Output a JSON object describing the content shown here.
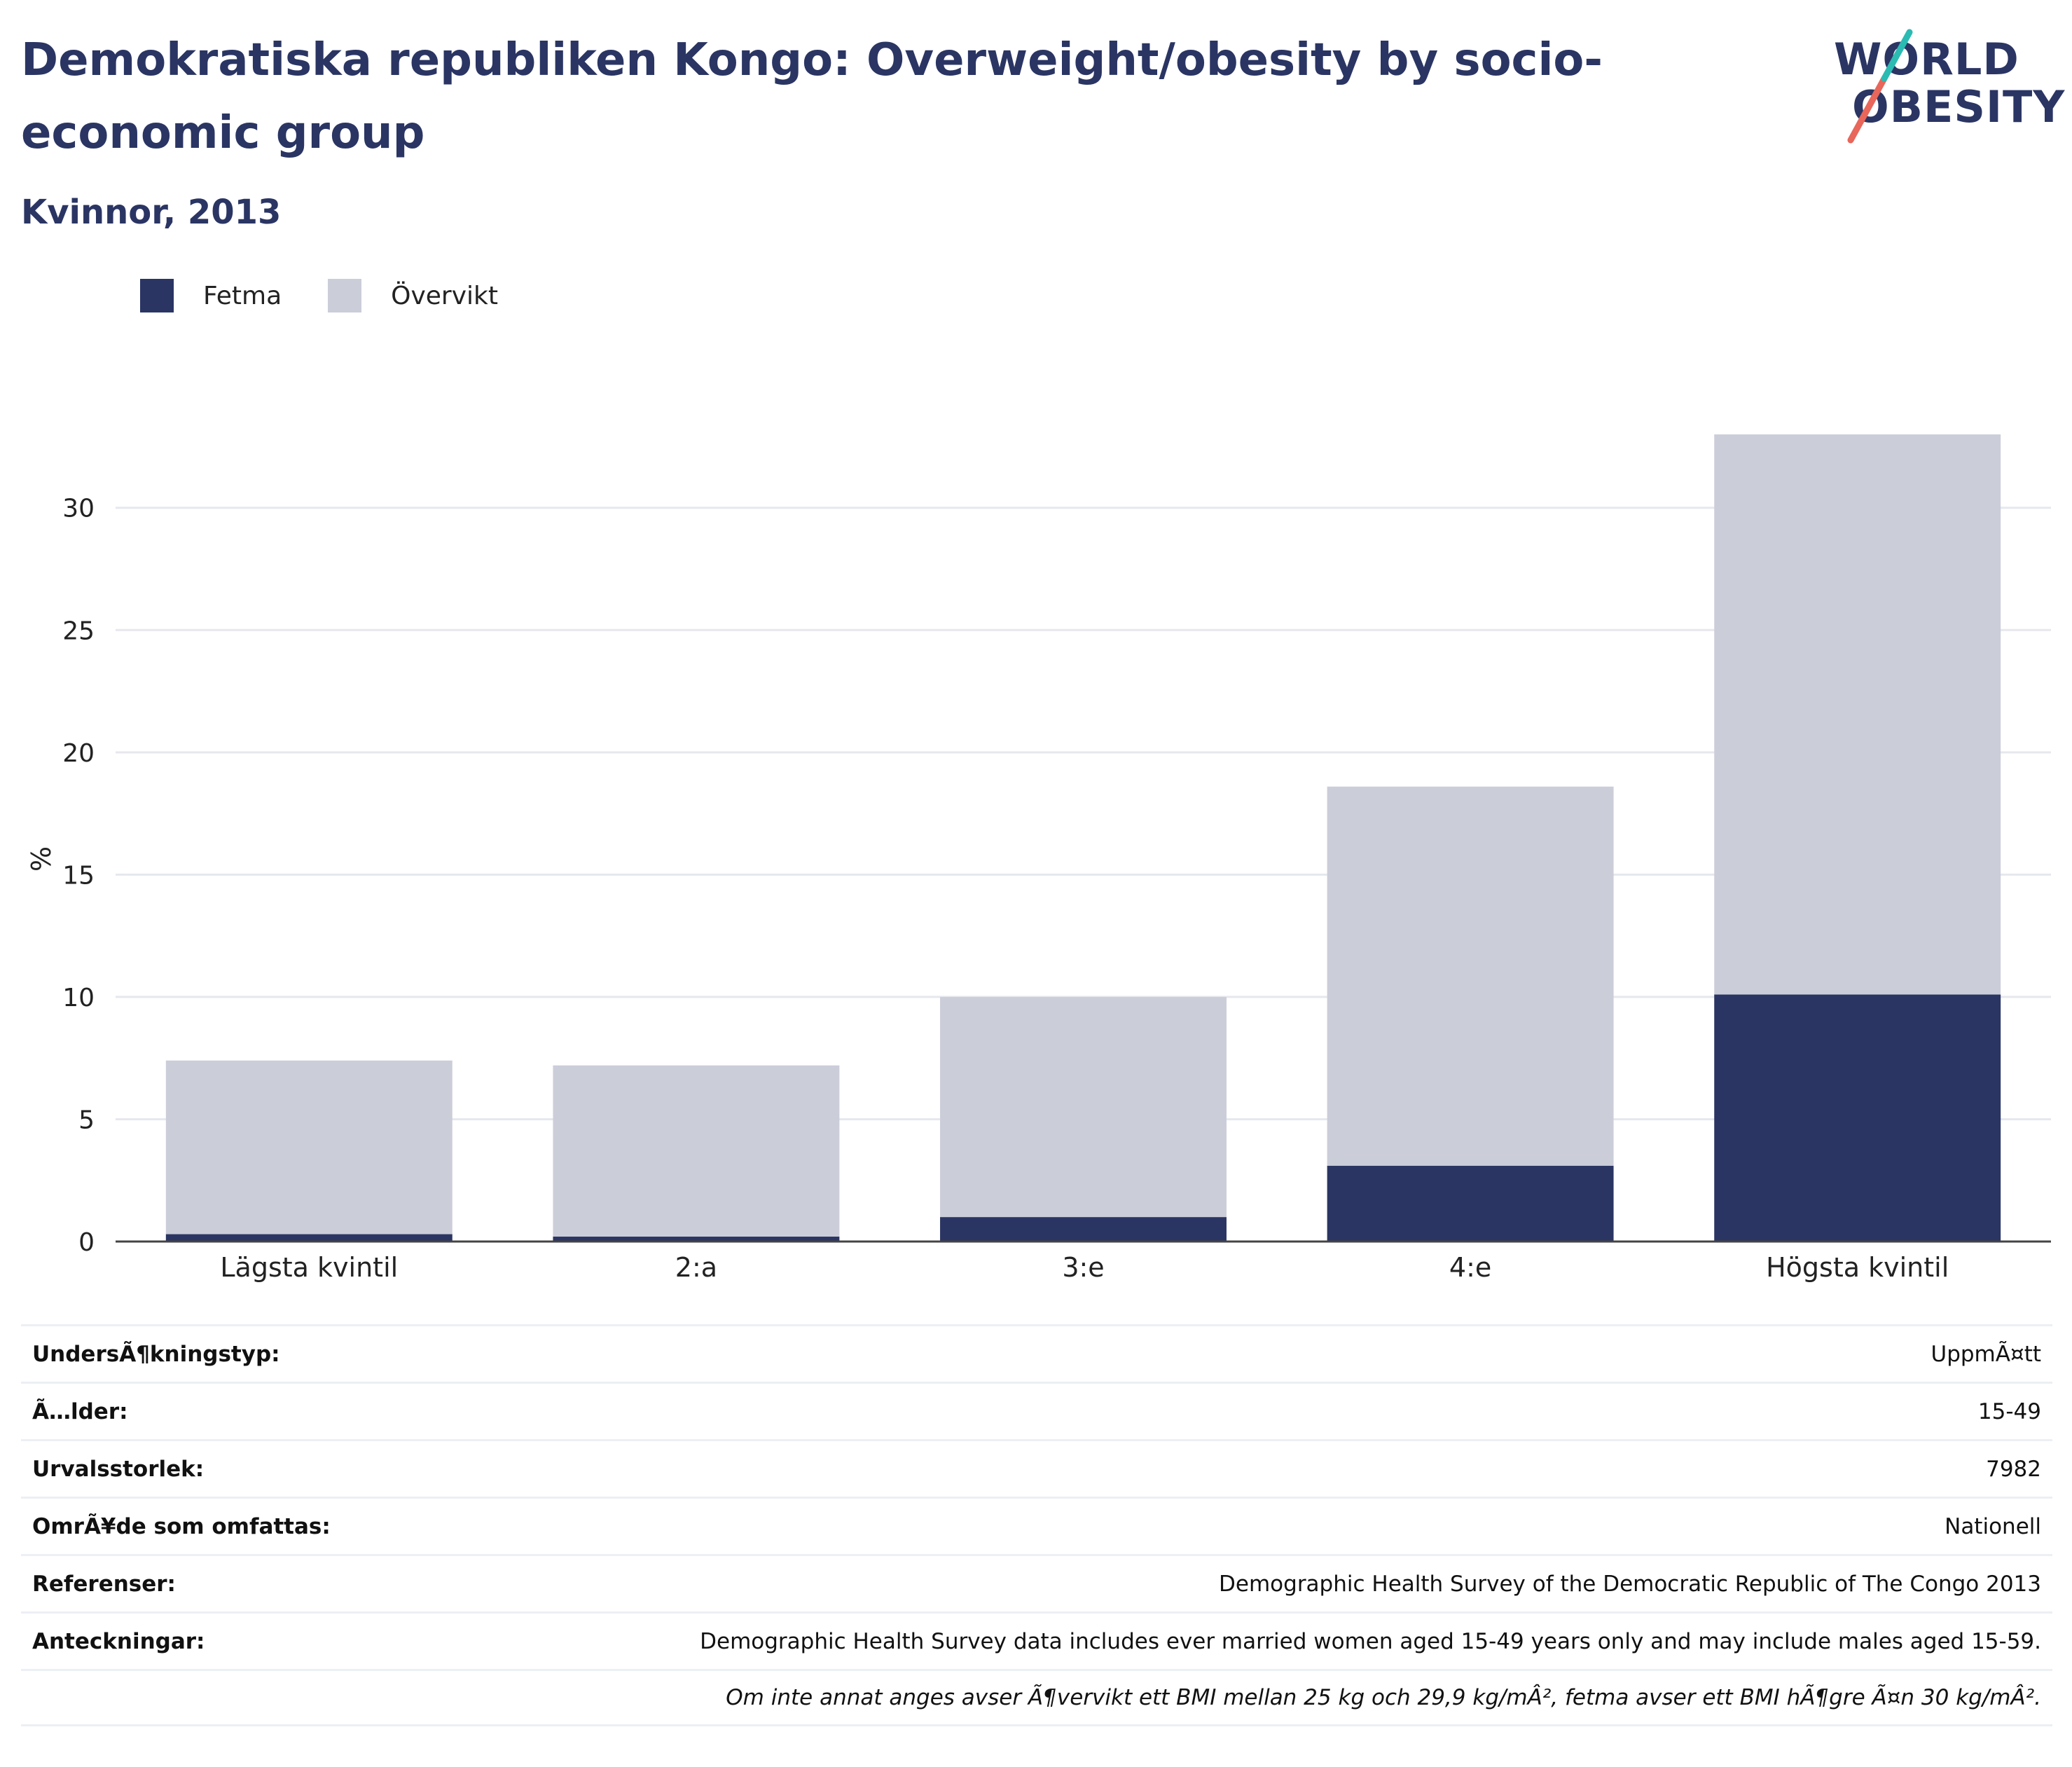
{
  "title": "Demokratiska republiken Kongo: Overweight/obesity by socio-economic group",
  "subtitle": "Kvinnor, 2013",
  "logo": {
    "line1": "WORLD",
    "line2": "OBESITY"
  },
  "colors": {
    "fetma": "#2a3563",
    "overvikt": "#cbcdd9",
    "title": "#2a3563",
    "grid": "#e6e8ee",
    "logo_teal": "#2bbbb3",
    "logo_coral": "#e8665a"
  },
  "legend": [
    {
      "label": "Fetma",
      "color": "#2a3563"
    },
    {
      "label": "Övervikt",
      "color": "#cbcdd9"
    }
  ],
  "chart_data": {
    "type": "bar",
    "stacked": true,
    "categories": [
      "Lägsta kvintil",
      "2:a",
      "3:e",
      "4:e",
      "Högsta kvintil"
    ],
    "series": [
      {
        "name": "Fetma",
        "values": [
          0.3,
          0.2,
          1.0,
          3.1,
          10.1
        ]
      },
      {
        "name": "Övervikt",
        "values": [
          7.1,
          7.0,
          9.0,
          15.5,
          22.9
        ]
      }
    ],
    "ylabel": "%",
    "ylim": [
      0,
      33
    ],
    "yticks": [
      0,
      5,
      10,
      15,
      20,
      25,
      30
    ],
    "grid": true,
    "legend_position": "top-left"
  },
  "meta": [
    {
      "key": "UndersÃ¶kningstyp:",
      "value": "UppmÃ¤tt"
    },
    {
      "key": "Ã…lder:",
      "value": "15-49"
    },
    {
      "key": "Urvalsstorlek:",
      "value": "7982"
    },
    {
      "key": "OmrÃ¥de som omfattas:",
      "value": "Nationell"
    },
    {
      "key": "Referenser:",
      "value": "Demographic Health Survey of the Democratic Republic of The Congo 2013"
    },
    {
      "key": "Anteckningar:",
      "value": "Demographic Health Survey data includes ever married women aged 15-49 years only and may include males aged 15-59."
    },
    {
      "key": "",
      "value": "Om inte annat anges avser Ã¶vervikt ett BMI mellan 25 kg och 29,9 kg/mÂ², fetma avser ett BMI hÃ¶gre Ã¤n 30 kg/mÂ²."
    }
  ]
}
